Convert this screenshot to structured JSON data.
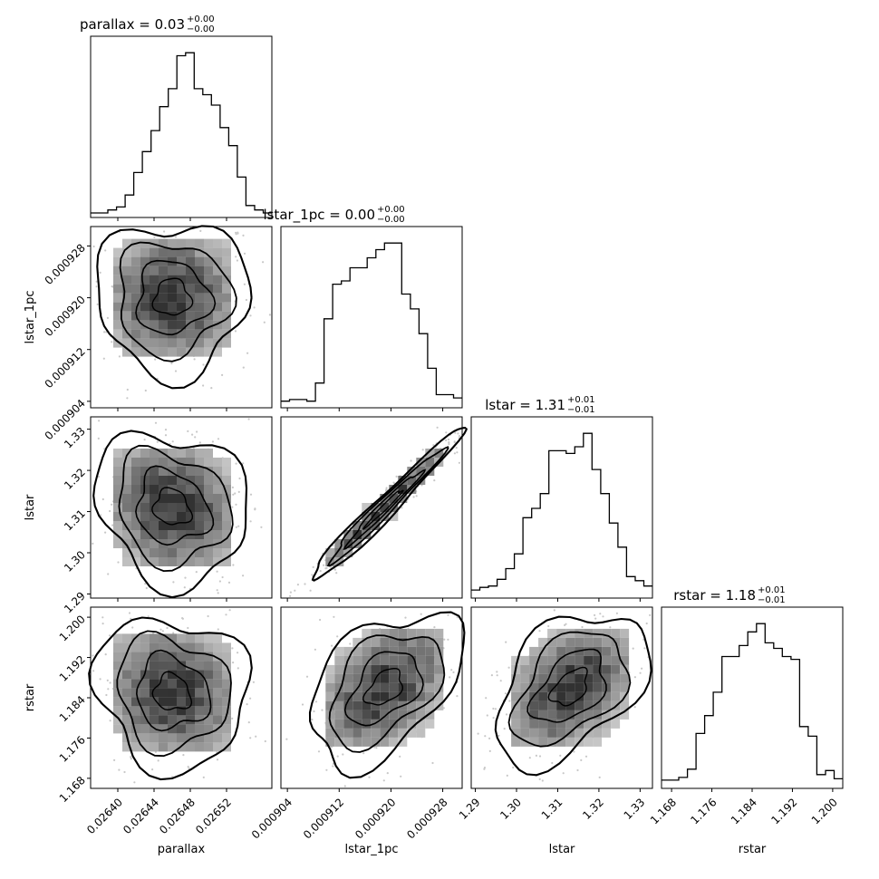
{
  "chart_data": {
    "type": "corner",
    "parameters": [
      "parallax",
      "lstar_1pc",
      "lstar",
      "rstar"
    ],
    "axis_labels": [
      "parallax",
      "lstar_1pc",
      "lstar",
      "rstar"
    ],
    "ranges": [
      [
        0.02637,
        0.02657
      ],
      [
        0.000903,
        0.000931
      ],
      [
        1.289,
        1.333
      ],
      [
        1.166,
        1.202
      ]
    ],
    "ticks": [
      [
        0.0264,
        0.02644,
        0.02648,
        0.02652
      ],
      [
        0.000904,
        0.000912,
        0.00092,
        0.000928
      ],
      [
        1.29,
        1.3,
        1.31,
        1.32,
        1.33
      ],
      [
        1.168,
        1.176,
        1.184,
        1.192,
        1.2
      ]
    ],
    "tick_labels": [
      [
        "0.02640",
        "0.02644",
        "0.02648",
        "0.02652"
      ],
      [
        "0.000904",
        "0.000912",
        "0.000920",
        "0.000928"
      ],
      [
        "1.29",
        "1.30",
        "1.31",
        "1.32",
        "1.33"
      ],
      [
        "1.168",
        "1.176",
        "1.184",
        "1.192",
        "1.200"
      ]
    ],
    "titles": [
      {
        "base": "parallax = 0.03",
        "plus": "+0.00",
        "minus": "−0.00"
      },
      {
        "base": "lstar_1pc = 0.00",
        "plus": "+0.00",
        "minus": "−0.00"
      },
      {
        "base": "lstar = 1.31",
        "plus": "+0.01",
        "minus": "−0.01"
      },
      {
        "base": "rstar = 1.18",
        "plus": "+0.01",
        "minus": "−0.01"
      }
    ],
    "histograms": [
      [
        3,
        3,
        5,
        7,
        15,
        30,
        44,
        58,
        74,
        86,
        108,
        110,
        86,
        82,
        75,
        60,
        48,
        27,
        8,
        5,
        3
      ],
      [
        4,
        5,
        5,
        4,
        15,
        54,
        75,
        77,
        85,
        85,
        91,
        96,
        100,
        100,
        69,
        60,
        45,
        24,
        8,
        8,
        6
      ],
      [
        6,
        8,
        9,
        14,
        22,
        33,
        60,
        67,
        78,
        110,
        110,
        108,
        113,
        123,
        96,
        78,
        56,
        38,
        16,
        13,
        9
      ],
      [
        6,
        6,
        8,
        14,
        40,
        53,
        70,
        96,
        96,
        104,
        114,
        120,
        106,
        102,
        96,
        94,
        45,
        38,
        10,
        13,
        7
      ]
    ],
    "pair_centers": [
      {
        "x": 0,
        "y": 1,
        "mx": 0.02646,
        "my": 0.00092,
        "rho": 0.0
      },
      {
        "x": 0,
        "y": 2,
        "mx": 0.02646,
        "my": 1.311,
        "rho": -0.15
      },
      {
        "x": 0,
        "y": 3,
        "mx": 0.02646,
        "my": 1.185,
        "rho": -0.1
      },
      {
        "x": 1,
        "y": 2,
        "mx": 0.000919,
        "my": 1.311,
        "rho": 0.98
      },
      {
        "x": 1,
        "y": 3,
        "mx": 0.000919,
        "my": 1.186,
        "rho": 0.45
      },
      {
        "x": 2,
        "y": 3,
        "mx": 1.313,
        "my": 1.186,
        "rho": 0.45
      }
    ],
    "grid": false
  }
}
